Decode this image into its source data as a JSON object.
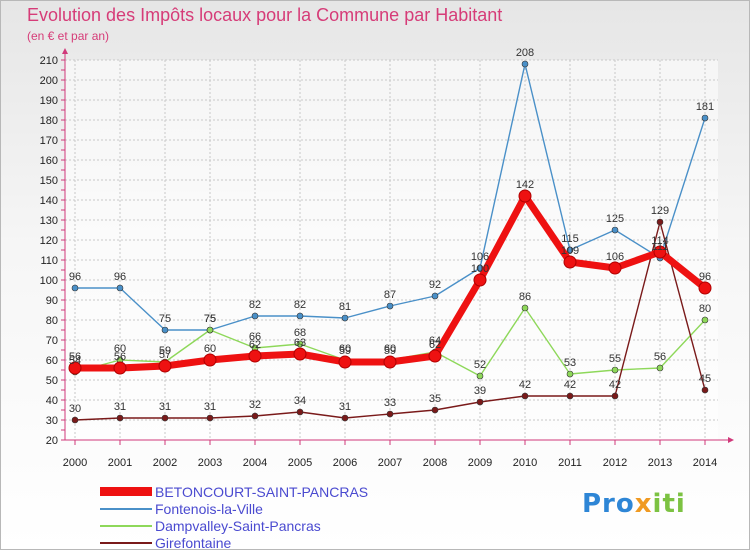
{
  "title": "Evolution des Impôts locaux pour la Commune par Habitant",
  "subtitle": "(en € et par an)",
  "logo": {
    "part1": "Pro",
    "part2": "x",
    "part3": "iti"
  },
  "chart_data": {
    "type": "line",
    "title": "Evolution des Impôts locaux pour la Commune par Habitant",
    "ylabel": "(en € et par an)",
    "xlabel": "",
    "x": [
      2000,
      2001,
      2002,
      2003,
      2004,
      2005,
      2006,
      2007,
      2008,
      2009,
      2010,
      2011,
      2012,
      2013,
      2014
    ],
    "ylim": [
      20,
      210
    ],
    "yticks": [
      20,
      30,
      40,
      50,
      60,
      70,
      80,
      90,
      100,
      110,
      120,
      130,
      140,
      150,
      160,
      170,
      180,
      190,
      200,
      210
    ],
    "grid": true,
    "legend_position": "bottom-left",
    "series": [
      {
        "name": "BETONCOURT-SAINT-PANCRAS",
        "color": "#ee1111",
        "values": [
          56,
          56,
          57,
          60,
          62,
          63,
          59,
          59,
          62,
          100,
          142,
          109,
          106,
          114,
          96
        ]
      },
      {
        "name": "Fontenois-la-Ville",
        "color": "#4a90c8",
        "values": [
          96,
          96,
          75,
          75,
          82,
          82,
          81,
          87,
          92,
          106,
          208,
          115,
          125,
          111,
          181
        ]
      },
      {
        "name": "Dampvalley-Saint-Pancras",
        "color": "#8ed85a",
        "values": [
          54,
          60,
          59,
          75,
          66,
          68,
          60,
          60,
          64,
          52,
          86,
          53,
          55,
          56,
          80
        ]
      },
      {
        "name": "Girefontaine",
        "color": "#7a1a1a",
        "values": [
          30,
          31,
          31,
          31,
          32,
          34,
          31,
          33,
          35,
          39,
          42,
          42,
          42,
          129,
          45
        ]
      }
    ]
  }
}
